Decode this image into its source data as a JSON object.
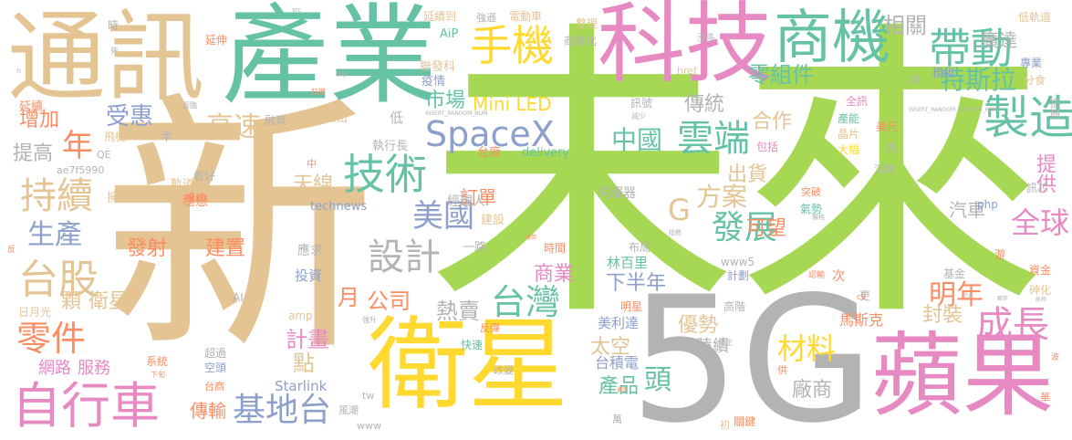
{
  "colors": {
    "tan": "#E5C494",
    "green": "#A6D854",
    "teal": "#66C2A5",
    "pink": "#E78AC3",
    "yellow": "#FFD92F",
    "orange": "#FC8D62",
    "blue": "#8DA0CB",
    "gray": "#B3B3B3"
  },
  "words": [
    {
      "text": "新",
      "color": "tan"
    },
    {
      "text": "未來",
      "color": "green"
    },
    {
      "text": "5G",
      "color": "gray"
    },
    {
      "text": "產業",
      "color": "teal"
    },
    {
      "text": "通訊",
      "color": "tan"
    },
    {
      "text": "科技",
      "color": "pink"
    },
    {
      "text": "商機",
      "color": "teal"
    },
    {
      "text": "衛星",
      "color": "yellow"
    },
    {
      "text": "蘋果",
      "color": "pink"
    },
    {
      "text": "自行車",
      "color": "pink"
    },
    {
      "text": "手機",
      "color": "yellow"
    },
    {
      "text": "帶動",
      "color": "teal"
    },
    {
      "text": "技術",
      "color": "teal"
    },
    {
      "text": "雲端",
      "color": "teal"
    },
    {
      "text": "製造",
      "color": "teal"
    },
    {
      "text": "SpaceX",
      "color": "blue"
    },
    {
      "text": "台股",
      "color": "tan"
    },
    {
      "text": "持續",
      "color": "tan"
    },
    {
      "text": "零件",
      "color": "orange"
    },
    {
      "text": "基地台",
      "color": "blue"
    },
    {
      "text": "成長",
      "color": "pink"
    },
    {
      "text": "台灣",
      "color": "teal"
    },
    {
      "text": "全球",
      "color": "pink"
    },
    {
      "text": "設計",
      "color": "gray"
    },
    {
      "text": "發展",
      "color": "teal"
    },
    {
      "text": "美國",
      "color": "blue"
    },
    {
      "text": "特斯拉",
      "color": "teal"
    },
    {
      "text": "生產",
      "color": "blue"
    },
    {
      "text": "年",
      "color": "orange"
    },
    {
      "text": "材料",
      "color": "yellow"
    },
    {
      "text": "明年",
      "color": "orange"
    },
    {
      "text": "G",
      "color": "tan"
    },
    {
      "text": "方案",
      "color": "tan"
    },
    {
      "text": "相關",
      "color": "gray"
    },
    {
      "text": "高速",
      "color": "tan"
    },
    {
      "text": "受惠",
      "color": "blue"
    },
    {
      "text": "中國",
      "color": "teal"
    },
    {
      "text": "零組件",
      "color": "teal"
    },
    {
      "text": "廣達",
      "color": "gray"
    },
    {
      "text": "提供",
      "color": "pink"
    },
    {
      "text": "Mini LED",
      "color": "yellow"
    },
    {
      "text": "市場",
      "color": "teal"
    },
    {
      "text": "傳統",
      "color": "gray"
    },
    {
      "text": "合作",
      "color": "tan"
    },
    {
      "text": "出貨",
      "color": "tan"
    },
    {
      "text": "訂單",
      "color": "orange"
    },
    {
      "text": "天線",
      "color": "tan"
    },
    {
      "text": "公司",
      "color": "orange"
    },
    {
      "text": "熱賣",
      "color": "gray"
    },
    {
      "text": "下半年",
      "color": "blue"
    },
    {
      "text": "計畫",
      "color": "pink"
    },
    {
      "text": "點",
      "color": "tan"
    },
    {
      "text": "傳輸",
      "color": "orange"
    },
    {
      "text": "產品",
      "color": "teal"
    },
    {
      "text": "頭",
      "color": "teal"
    },
    {
      "text": "商業",
      "color": "pink"
    },
    {
      "text": "優勢",
      "color": "tan"
    },
    {
      "text": "封裝",
      "color": "tan"
    },
    {
      "text": "汽車",
      "color": "gray"
    },
    {
      "text": "廠商",
      "color": "gray"
    },
    {
      "text": "建置",
      "color": "orange"
    },
    {
      "text": "發射",
      "color": "orange"
    },
    {
      "text": "增加",
      "color": "orange"
    },
    {
      "text": "提高",
      "color": "gray"
    },
    {
      "text": "太空",
      "color": "tan"
    },
    {
      "text": "可望",
      "color": "orange"
    },
    {
      "text": "陸續",
      "color": "gray"
    },
    {
      "text": "月",
      "color": "orange"
    },
    {
      "text": "顆",
      "color": "tan"
    },
    {
      "text": "衛星",
      "color": "tan"
    },
    {
      "text": "網路",
      "color": "pink"
    },
    {
      "text": "服務",
      "color": "pink"
    },
    {
      "text": "Starlink",
      "color": "blue"
    },
    {
      "text": "台積電",
      "color": "blue"
    },
    {
      "text": "馬斯克",
      "color": "orange"
    },
    {
      "text": "美利達",
      "color": "blue"
    },
    {
      "text": "林百里",
      "color": "teal"
    },
    {
      "text": "投資",
      "color": "blue"
    },
    {
      "text": "應求",
      "color": "gray"
    },
    {
      "text": "一路",
      "color": "gray"
    },
    {
      "text": "經理人",
      "color": "gray"
    },
    {
      "text": "伺服器",
      "color": "gray"
    },
    {
      "text": "建設",
      "color": "tan"
    },
    {
      "text": "軌道",
      "color": "tan"
    },
    {
      "text": "穩懋",
      "color": "orange"
    },
    {
      "text": "擁有",
      "color": "tan"
    },
    {
      "text": "technews",
      "color": "blue"
    },
    {
      "text": "delivery",
      "color": "teal"
    },
    {
      "text": "台廠",
      "color": "orange"
    },
    {
      "text": "執行長",
      "color": "gray"
    },
    {
      "text": "推出",
      "color": "tan"
    },
    {
      "text": "融資",
      "color": "gray"
    },
    {
      "text": "延續",
      "color": "orange"
    },
    {
      "text": "飛機",
      "color": "tan"
    },
    {
      "text": "半",
      "color": "gray"
    },
    {
      "text": "疫情",
      "color": "blue"
    },
    {
      "text": "聯發科",
      "color": "tan"
    },
    {
      "text": "AiP",
      "color": "teal"
    },
    {
      "text": "延續到",
      "color": "tan"
    },
    {
      "text": "強遜",
      "color": "gray"
    },
    {
      "text": "電動車",
      "color": "tan"
    },
    {
      "text": "整理",
      "color": "tan"
    },
    {
      "text": "商業化",
      "color": "gray"
    },
    {
      "text": "低軌道",
      "color": "tan"
    },
    {
      "text": "分食",
      "color": "tan"
    },
    {
      "text": "專業",
      "color": "blue"
    },
    {
      "text": "模組",
      "color": "blue"
    },
    {
      "text": "振興",
      "color": "gray"
    },
    {
      "text": "美元",
      "color": "orange"
    },
    {
      "text": "產能",
      "color": "teal"
    },
    {
      "text": "晶片",
      "color": "tan"
    },
    {
      "text": "大幅",
      "color": "yellow"
    },
    {
      "text": "包括",
      "color": "pink"
    },
    {
      "text": "全訊",
      "color": "pink"
    },
    {
      "text": "訊號",
      "color": "gray"
    },
    {
      "text": "延伸",
      "color": "orange"
    },
    {
      "text": "時",
      "color": "gray"
    },
    {
      "text": "QE",
      "color": "gray"
    },
    {
      "text": "ae7f5990",
      "color": "gray"
    },
    {
      "text": "www5",
      "color": "gray"
    },
    {
      "text": "計劃",
      "color": "blue"
    },
    {
      "text": "高階",
      "color": "gray"
    },
    {
      "text": "基金",
      "color": "gray"
    },
    {
      "text": "資金",
      "color": "orange"
    },
    {
      "text": "砷化",
      "color": "tan"
    },
    {
      "text": "反彈",
      "color": "orange"
    },
    {
      "text": "快速",
      "color": "teal"
    },
    {
      "text": "改變",
      "color": "gray"
    },
    {
      "text": "風潮",
      "color": "gray"
    },
    {
      "text": "萬",
      "color": "gray"
    },
    {
      "text": "關鍵",
      "color": "orange"
    },
    {
      "text": "php",
      "color": "blue"
    },
    {
      "text": "訊芯",
      "color": "gray"
    },
    {
      "text": "時間",
      "color": "orange"
    },
    {
      "text": "布局",
      "color": "gray"
    },
    {
      "text": "超過",
      "color": "gray"
    },
    {
      "text": "空頭",
      "color": "blue"
    },
    {
      "text": "台商",
      "color": "orange"
    },
    {
      "text": "AI",
      "color": "gray"
    },
    {
      "text": "日月光",
      "color": "tan"
    },
    {
      "text": "amp",
      "color": "tan"
    },
    {
      "text": "系統",
      "color": "orange"
    },
    {
      "text": "模式",
      "color": "orange"
    },
    {
      "text": "看好",
      "color": "gray"
    },
    {
      "text": "中",
      "color": "orange"
    },
    {
      "text": "低",
      "color": "gray"
    },
    {
      "text": "氣勢",
      "color": "teal"
    },
    {
      "text": "突破",
      "color": "orange"
    },
    {
      "text": "兆",
      "color": "gray"
    },
    {
      "text": "沉澱",
      "color": "gray"
    },
    {
      "text": "游",
      "color": "orange"
    },
    {
      "text": "tw",
      "color": "gray"
    },
    {
      "text": "www",
      "color": "gray"
    },
    {
      "text": "明星",
      "color": "orange"
    },
    {
      "text": "次",
      "color": "orange"
    },
    {
      "text": "更",
      "color": "gray"
    },
    {
      "text": "供",
      "color": "orange"
    },
    {
      "text": "華",
      "color": "orange"
    },
    {
      "text": "初",
      "color": "tan"
    },
    {
      "text": "cb",
      "color": "gray"
    },
    {
      "text": "href",
      "color": "tan"
    },
    {
      "text": "漲多",
      "color": "gray"
    },
    {
      "text": "強升",
      "color": "gray"
    },
    {
      "text": "INSERT_RANDOM_NUM",
      "color": "gray"
    },
    {
      "text": "INSERT_RANDOM_NUMBER_HERE",
      "color": "gray"
    },
    {
      "text": "減少",
      "color": "gray"
    },
    {
      "text": "指數",
      "color": "gray"
    },
    {
      "text": "認輸",
      "color": "orange"
    },
    {
      "text": "面臨",
      "color": "gray"
    },
    {
      "text": "死",
      "color": "gray"
    },
    {
      "text": "n",
      "color": "gray"
    },
    {
      "text": "src",
      "color": "gray"
    },
    {
      "text": "狂增",
      "color": "orange"
    },
    {
      "text": "修正",
      "color": "gray"
    },
    {
      "text": "波",
      "color": "orange"
    },
    {
      "text": "反",
      "color": "orange"
    },
    {
      "text": "下旬",
      "color": "orange"
    },
    {
      "text": "ck",
      "color": "orange"
    },
    {
      "text": "價格",
      "color": "gray"
    },
    {
      "text": "追逐",
      "color": "gray"
    },
    {
      "text": "研發",
      "color": "gray"
    },
    {
      "text": "債券",
      "color": "orange"
    },
    {
      "text": "畫面",
      "color": "orange"
    },
    {
      "text": "夥伴",
      "color": "gray"
    },
    {
      "text": "能夠",
      "color": "gray"
    }
  ]
}
